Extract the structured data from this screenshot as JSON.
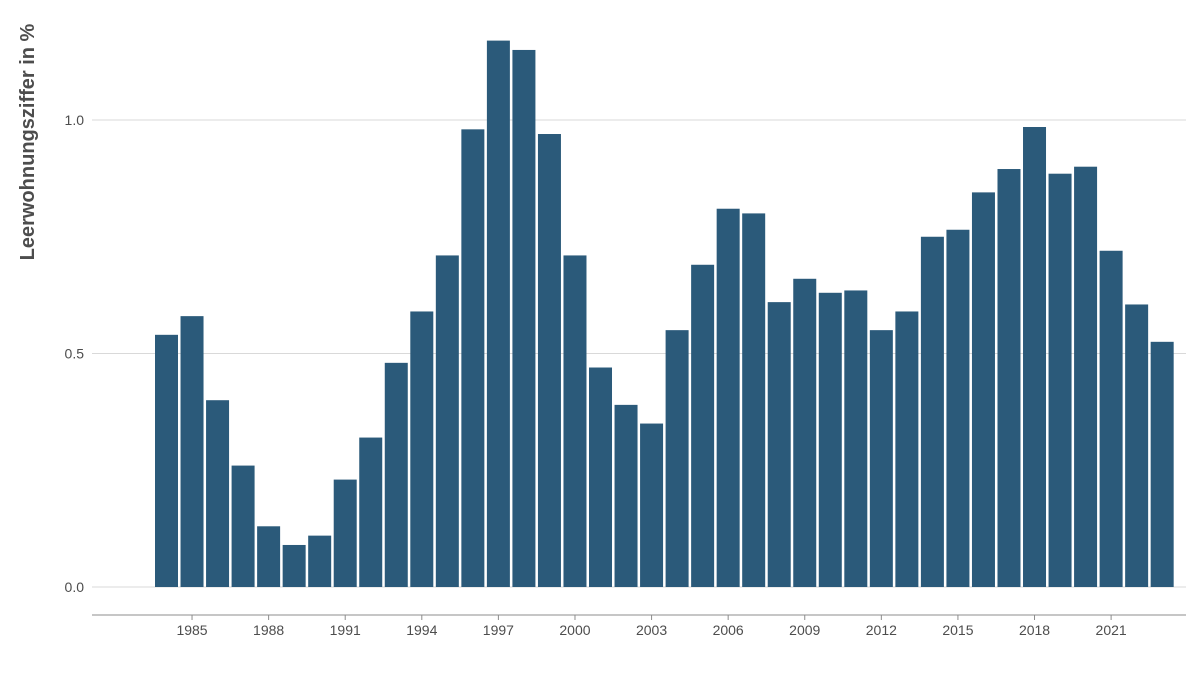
{
  "chart_data": {
    "type": "bar",
    "title": "",
    "xlabel": "",
    "ylabel": "Leerwohnungsziffer in %",
    "bar_color": "#2b5a7a",
    "grid": true,
    "ylim": [
      0,
      1.2
    ],
    "y_ticks": [
      {
        "value": 0.0,
        "label": "0.0"
      },
      {
        "value": 0.5,
        "label": "0.5"
      },
      {
        "value": 1.0,
        "label": "1.0"
      }
    ],
    "x_ticks": [
      "1985",
      "1988",
      "1991",
      "1994",
      "1997",
      "2000",
      "2003",
      "2006",
      "2009",
      "2012",
      "2015",
      "2018",
      "2021"
    ],
    "categories": [
      "1984",
      "1985",
      "1986",
      "1987",
      "1988",
      "1989",
      "1990",
      "1991",
      "1992",
      "1993",
      "1994",
      "1995",
      "1996",
      "1997",
      "1998",
      "1999",
      "2000",
      "2001",
      "2002",
      "2003",
      "2004",
      "2005",
      "2006",
      "2007",
      "2008",
      "2009",
      "2010",
      "2011",
      "2012",
      "2013",
      "2014",
      "2015",
      "2016",
      "2017",
      "2018",
      "2019",
      "2020",
      "2021",
      "2022",
      "2023"
    ],
    "values": [
      0.54,
      0.58,
      0.4,
      0.26,
      0.13,
      0.09,
      0.11,
      0.23,
      0.32,
      0.48,
      0.59,
      0.71,
      0.98,
      1.17,
      1.15,
      0.97,
      0.71,
      0.47,
      0.39,
      0.35,
      0.55,
      0.69,
      0.81,
      0.8,
      0.61,
      0.66,
      0.63,
      0.635,
      0.55,
      0.59,
      0.75,
      0.765,
      0.845,
      0.895,
      0.985,
      0.885,
      0.9,
      0.72,
      0.605,
      0.525
    ]
  }
}
